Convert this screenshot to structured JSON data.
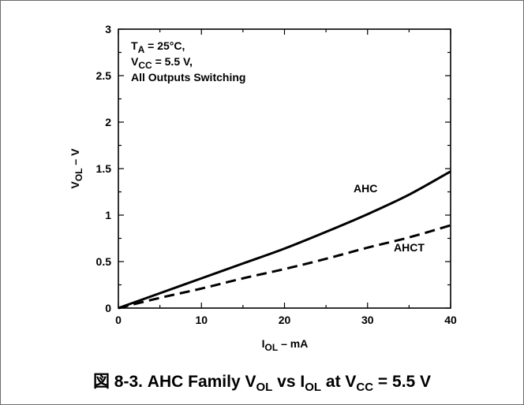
{
  "chart_data": {
    "type": "line",
    "xlim": [
      0,
      40
    ],
    "ylim": [
      0,
      3
    ],
    "x_ticks": [
      "0",
      "10",
      "20",
      "30",
      "40"
    ],
    "y_ticks": [
      "0",
      "0.5",
      "1",
      "1.5",
      "2",
      "2.5",
      "3"
    ],
    "xlabel": {
      "main": "I",
      "sub": "OL",
      "rest": " – mA"
    },
    "ylabel": {
      "main": "V",
      "sub": "OL",
      "rest": " – V"
    },
    "grid": false,
    "annotation": {
      "line1": {
        "main": "T",
        "sub": "A",
        "rest": " = 25°C,"
      },
      "line2": {
        "main": "V",
        "sub": "CC",
        "rest": " = 5.5 V,"
      },
      "line3": "All Outputs Switching"
    },
    "series": [
      {
        "name": "AHC",
        "style": "solid",
        "x": [
          0,
          5,
          10,
          15,
          20,
          25,
          30,
          35,
          40
        ],
        "y": [
          0,
          0.16,
          0.32,
          0.48,
          0.64,
          0.82,
          1.01,
          1.22,
          1.47
        ]
      },
      {
        "name": "AHCT",
        "style": "dashed",
        "x": [
          0,
          5,
          10,
          15,
          20,
          25,
          30,
          35,
          40
        ],
        "y": [
          0,
          0.11,
          0.21,
          0.32,
          0.42,
          0.53,
          0.65,
          0.76,
          0.89
        ]
      }
    ]
  },
  "caption": {
    "prefix": "図 8-3. AHC Family V",
    "sub1": "OL",
    "mid1": " vs I",
    "sub2": "OL",
    "mid2": " at V",
    "sub3": "CC",
    "suffix": " = 5.5 V"
  },
  "colors": {
    "line": "#000000",
    "frame": "#6b6b6b"
  }
}
